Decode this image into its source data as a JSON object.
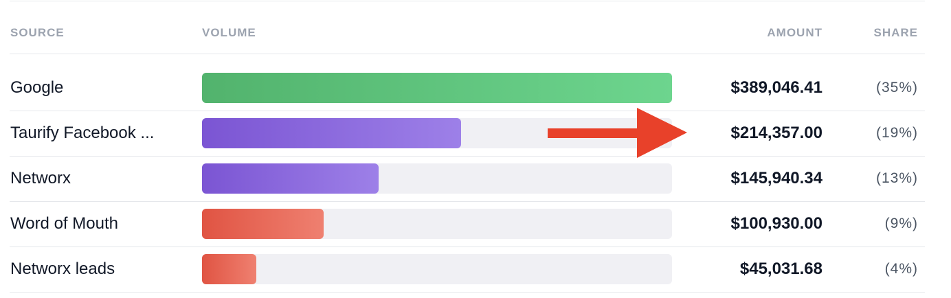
{
  "table": {
    "headers": [
      "SOURCE",
      "VOLUME",
      "AMOUNT",
      "SHARE"
    ],
    "rows": [
      {
        "source": "Google",
        "amount": {
          "value": 389046.41,
          "label": "$389,046.41"
        },
        "share": "(35%)",
        "gradient": [
          "#52b36d",
          "#6dd58e"
        ]
      },
      {
        "source": "Taurify Facebook ...",
        "amount": {
          "value": 214357.0,
          "label": "$214,357.00"
        },
        "share": "(19%)",
        "gradient": [
          "#7b55d3",
          "#9d80e8"
        ]
      },
      {
        "source": "Networx",
        "amount": {
          "value": 145940.34,
          "label": "$145,940.34"
        },
        "share": "(13%)",
        "gradient": [
          "#7b55d3",
          "#9d80e8"
        ]
      },
      {
        "source": "Word of Mouth",
        "amount": {
          "value": 100930.0,
          "label": "$100,930.00"
        },
        "share": "(9%)",
        "gradient": [
          "#e05443",
          "#ef8070"
        ]
      },
      {
        "source": "Networx leads",
        "amount": {
          "value": 45031.68,
          "label": "$45,031.68"
        },
        "share": "(4%)",
        "gradient": [
          "#e05443",
          "#ef8070"
        ]
      }
    ]
  }
}
